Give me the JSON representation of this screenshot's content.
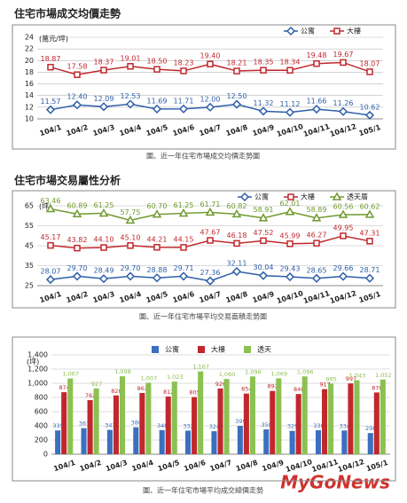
{
  "chart_data": [
    {
      "type": "line",
      "title": "住宅市場成交均價走勢",
      "caption": "圖、近一年住宅市場成交均價走勢圖",
      "y_unit": "(萬元/坪)",
      "categories": [
        "104/1",
        "104/2",
        "104/3",
        "104/4",
        "104/5",
        "104/6",
        "104/7",
        "104/8",
        "104/9",
        "104/10",
        "104/11",
        "104/12",
        "105/1"
      ],
      "series": [
        {
          "name": "公寓",
          "color": "#2e5fa8",
          "marker": "diamond",
          "values": [
            11.57,
            12.4,
            12.09,
            12.53,
            11.69,
            11.71,
            12.0,
            12.5,
            11.32,
            11.12,
            11.66,
            11.26,
            10.62
          ],
          "value_labels": [
            "11.57",
            "12.40",
            "12.09",
            "12.53",
            "11.69",
            "11.71",
            "12.00",
            "12.50",
            "11.32",
            "11.12",
            "11.66",
            "11.26",
            "10.62"
          ]
        },
        {
          "name": "大樓",
          "color": "#c0282d",
          "marker": "square",
          "values": [
            18.87,
            17.58,
            18.37,
            19.01,
            18.5,
            18.23,
            19.4,
            18.21,
            18.35,
            18.34,
            19.48,
            19.67,
            18.07
          ],
          "value_labels": [
            "18.87",
            "17.58",
            "18.37",
            "19.01",
            "18.50",
            "18.23",
            "19.40",
            "18.21",
            "18.35",
            "18.34",
            "19.48",
            "19.67",
            "18.07"
          ]
        }
      ],
      "ylim": [
        10,
        24
      ],
      "yticks": [
        10,
        12,
        14,
        16,
        18,
        20,
        22,
        24
      ],
      "grid": true,
      "legend": "top-right"
    },
    {
      "type": "line",
      "title": "住宅市場交易屬性分析",
      "caption": "圖、近一年住宅市場平均交易面積走勢圖",
      "y_unit": "(坪)",
      "categories": [
        "104/1",
        "104/2",
        "104/3",
        "104/4",
        "104/5",
        "104/6",
        "104/7",
        "104/8",
        "104/9",
        "104/10",
        "104/11",
        "104/12",
        "105/1"
      ],
      "series": [
        {
          "name": "公寓",
          "color": "#2e5fa8",
          "marker": "diamond",
          "values": [
            28.07,
            29.7,
            28.49,
            29.7,
            28.88,
            29.71,
            27.36,
            32.11,
            30.04,
            29.43,
            28.65,
            29.66,
            28.71
          ],
          "value_labels": [
            "28.07",
            "29.70",
            "28.49",
            "29.70",
            "28.88",
            "29.71",
            "27.36",
            "32.11",
            "30.04",
            "29.43",
            "28.65",
            "29.66",
            "28.71"
          ]
        },
        {
          "name": "大樓",
          "color": "#c0282d",
          "marker": "square",
          "values": [
            45.17,
            43.82,
            44.1,
            45.1,
            44.21,
            44.15,
            47.67,
            46.18,
            47.52,
            45.99,
            46.27,
            49.95,
            47.31
          ],
          "value_labels": [
            "45.17",
            "43.82",
            "44.10",
            "45.10",
            "44.21",
            "44.15",
            "47.67",
            "46.18",
            "47.52",
            "45.99",
            "46.27",
            "49.95",
            "47.31"
          ]
        },
        {
          "name": "透天厝",
          "color": "#6f9a2e",
          "marker": "triangle",
          "values": [
            63.46,
            60.89,
            61.25,
            57.75,
            60.7,
            61.25,
            61.71,
            60.82,
            58.91,
            62.01,
            58.89,
            60.56,
            60.62
          ],
          "value_labels": [
            "63.46",
            "60.89",
            "61.25",
            "57.75",
            "60.70",
            "61.25",
            "61.71",
            "60.82",
            "58.91",
            "62.01",
            "58.89",
            "60.56",
            "60.62"
          ]
        }
      ],
      "ylim": [
        25,
        65
      ],
      "yticks": [
        25,
        35,
        45,
        55,
        65
      ],
      "grid": true,
      "legend": "top-right"
    },
    {
      "type": "bar",
      "caption": "圖、近一年住宅市場平均成交總價走勢",
      "y_unit": "(坪)",
      "categories": [
        "104/1",
        "104/2",
        "104/3",
        "104/4",
        "104/5",
        "104/6",
        "104/7",
        "104/8",
        "104/9",
        "104/10",
        "104/11",
        "104/12",
        "105/1"
      ],
      "series": [
        {
          "name": "公寓",
          "color": "#3c6fbf",
          "values": [
            335,
            367,
            343,
            380,
            340,
            332,
            324,
            399,
            350,
            329,
            338,
            334,
            298
          ],
          "value_labels": [
            "335",
            "367",
            "343",
            "380",
            "340",
            "332",
            "324",
            "399",
            "350",
            "329",
            "338",
            "334",
            "298"
          ]
        },
        {
          "name": "大樓",
          "color": "#c0282d",
          "values": [
            874,
            762,
            828,
            863,
            812,
            805,
            926,
            854,
            892,
            848,
            917,
            997,
            870
          ],
          "value_labels": [
            "874",
            "762",
            "828",
            "863",
            "812",
            "805",
            "926",
            "854",
            "892",
            "848",
            "917",
            "997",
            "870"
          ]
        },
        {
          "name": "透天",
          "color": "#8cc152",
          "values": [
            1067,
            927,
            1098,
            1007,
            1023,
            1167,
            1060,
            1096,
            1069,
            1096,
            995,
            1043,
            1052
          ],
          "value_labels": [
            "1,067",
            "927",
            "1,098",
            "1,007",
            "1,023",
            "1,167",
            "1,060",
            "1,096",
            "1,069",
            "1,096",
            "995",
            "1,043",
            "1,052"
          ]
        }
      ],
      "ylim": [
        0,
        1400
      ],
      "yticks": [
        0,
        {
          "value": 200,
          "label": "200"
        },
        {
          "value": 400,
          "label": "400"
        },
        {
          "value": 600,
          "label": "600"
        },
        {
          "value": 800,
          "label": "800"
        },
        {
          "value": 1000,
          "label": "1,000"
        },
        {
          "value": 1200,
          "label": "1,200"
        },
        {
          "value": 1400,
          "label": "1,400"
        }
      ],
      "grid": true,
      "legend": "top"
    }
  ],
  "watermark": "MyGoNews"
}
